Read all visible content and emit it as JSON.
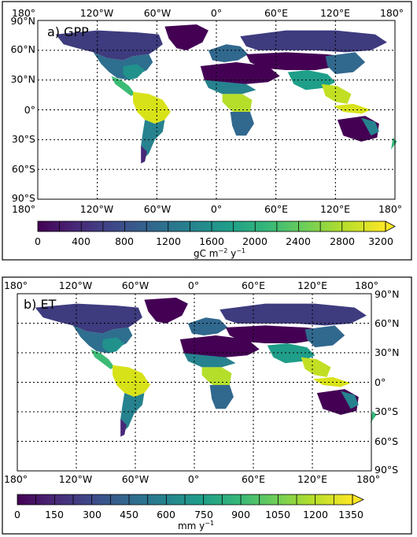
{
  "panels": [
    {
      "title": "a) GPP",
      "lon_top": [
        "180°",
        "120°W",
        "60°W",
        "0°",
        "60°E",
        "120°E",
        "180°"
      ],
      "lon_bottom": [
        "180°",
        "120°W",
        "60°W",
        "0°",
        "60°E",
        "120°E",
        "180°"
      ],
      "lat_labels": [
        "90°N",
        "60°N",
        "30°N",
        "0°",
        "30°S",
        "60°S",
        "90°S"
      ],
      "lat_side": "left",
      "colorbar": {
        "ticks": [
          "0",
          "400",
          "800",
          "1200",
          "1600",
          "2000",
          "2400",
          "2800",
          "3200"
        ],
        "units_main": "gC m",
        "units_exp1": "−2",
        "units_mid": " y",
        "units_exp2": "−1",
        "extend": "max",
        "colormap": "viridis"
      }
    },
    {
      "title": "b) ET",
      "lon_top": [
        "180°",
        "120°W",
        "60°W",
        "0°",
        "60°E",
        "120°E",
        "180°"
      ],
      "lon_bottom": [
        "180°",
        "120°W",
        "60°W",
        "0°",
        "60°E",
        "120°E",
        "180°"
      ],
      "lat_labels": [
        "90°N",
        "60°N",
        "30°N",
        "0°",
        "30°S",
        "60°S",
        "90°S"
      ],
      "lat_side": "right",
      "colorbar": {
        "ticks": [
          "0",
          "150",
          "300",
          "450",
          "600",
          "750",
          "900",
          "1050",
          "1200",
          "1350"
        ],
        "units_main": "mm y",
        "units_exp1": "",
        "units_mid": "",
        "units_exp2": "−1",
        "extend": "max",
        "colormap": "viridis"
      }
    }
  ],
  "colors": {
    "viridis": [
      "#440154",
      "#482878",
      "#3e4989",
      "#31688e",
      "#26828e",
      "#1f9e89",
      "#35b779",
      "#6ece58",
      "#b5de2b",
      "#fde725"
    ],
    "frame": "#000000",
    "grid": "#000000"
  }
}
